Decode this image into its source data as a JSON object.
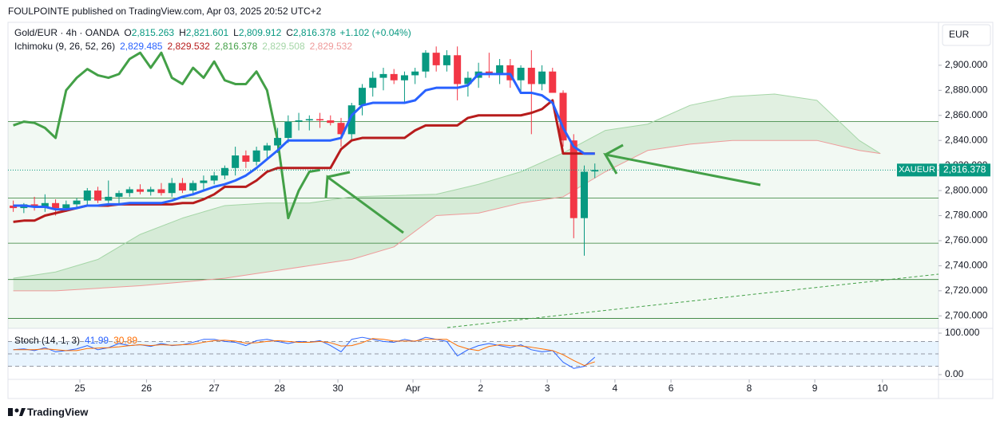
{
  "chart_data": {
    "type": "candlestick",
    "publisher": "FOULPOINTE published on TradingView.com, Apr 03, 2025 20:52 UTC+2",
    "title": "Gold/EUR · 4h · OANDA",
    "ohlc_readout": [
      {
        "key": "O",
        "label": "2,815.263"
      },
      {
        "key": "H",
        "label": "2,821.601"
      },
      {
        "key": "L",
        "label": "2,809.912"
      },
      {
        "key": "C",
        "label": "2,816.378"
      }
    ],
    "change": "+1.102 (+0.04%)",
    "currency": "EUR",
    "symbol_tag": "XAUEUR",
    "last_price_label": "2,816.378",
    "footer": "TradingView",
    "up_color": "#089981",
    "down_color": "#f23645",
    "x": [
      0,
      1,
      2,
      3,
      4,
      5,
      6,
      7,
      8,
      9,
      10,
      11,
      12,
      13,
      14,
      15,
      16,
      17,
      18,
      19,
      20,
      21,
      22,
      23,
      24,
      25,
      26,
      27,
      28,
      29,
      30,
      31,
      32,
      33,
      34,
      35,
      36,
      37,
      38,
      39,
      40,
      41,
      42,
      43,
      44,
      45,
      46,
      47,
      48,
      49,
      50,
      51,
      52,
      53,
      54,
      55
    ],
    "open": [
      2788,
      2786,
      2789,
      2787,
      2790,
      2786,
      2789,
      2792,
      2800,
      2792,
      2795,
      2798,
      2801,
      2799,
      2801,
      2798,
      2806,
      2800,
      2806,
      2808,
      2812,
      2818,
      2828,
      2823,
      2832,
      2836,
      2842,
      2855,
      2856,
      2857,
      2856,
      2854,
      2845,
      2868,
      2882,
      2890,
      2893,
      2888,
      2892,
      2895,
      2910,
      2900,
      2908,
      2885,
      2890,
      2895,
      2893,
      2900,
      2888,
      2898,
      2885,
      2895,
      2878,
      2840,
      2778,
      2815.263
    ],
    "high": [
      2792,
      2790,
      2795,
      2797,
      2793,
      2792,
      2794,
      2802,
      2803,
      2808,
      2800,
      2803,
      2805,
      2803,
      2806,
      2810,
      2810,
      2808,
      2812,
      2815,
      2820,
      2835,
      2832,
      2835,
      2838,
      2850,
      2860,
      2862,
      2860,
      2862,
      2860,
      2858,
      2870,
      2885,
      2895,
      2898,
      2897,
      2895,
      2898,
      2912,
      2915,
      2912,
      2915,
      2895,
      2902,
      2910,
      2905,
      2905,
      2900,
      2912,
      2900,
      2898,
      2880,
      2845,
      2820,
      2821.601
    ],
    "low": [
      2783,
      2782,
      2784,
      2783,
      2780,
      2783,
      2786,
      2788,
      2790,
      2790,
      2789,
      2795,
      2797,
      2796,
      2796,
      2795,
      2798,
      2796,
      2800,
      2805,
      2809,
      2812,
      2818,
      2820,
      2825,
      2830,
      2838,
      2848,
      2848,
      2850,
      2852,
      2835,
      2840,
      2860,
      2875,
      2880,
      2885,
      2870,
      2885,
      2890,
      2895,
      2895,
      2872,
      2875,
      2882,
      2890,
      2885,
      2882,
      2878,
      2845,
      2880,
      2880,
      2835,
      2762,
      2748,
      2809.912
    ],
    "close": [
      2786,
      2789,
      2787,
      2790,
      2786,
      2789,
      2792,
      2800,
      2792,
      2795,
      2798,
      2801,
      2799,
      2801,
      2798,
      2806,
      2800,
      2806,
      2808,
      2812,
      2818,
      2828,
      2823,
      2832,
      2836,
      2842,
      2855,
      2856,
      2857,
      2856,
      2854,
      2845,
      2868,
      2882,
      2890,
      2893,
      2888,
      2892,
      2895,
      2910,
      2900,
      2908,
      2885,
      2890,
      2895,
      2893,
      2900,
      2888,
      2898,
      2885,
      2895,
      2878,
      2840,
      2778,
      2815,
      2816.378
    ],
    "xlim": [
      -0.5,
      87.5
    ],
    "xticks": [
      {
        "value": 6.3,
        "label": "25"
      },
      {
        "value": 12.6,
        "label": "26"
      },
      {
        "value": 19,
        "label": "27"
      },
      {
        "value": 25.2,
        "label": "28"
      },
      {
        "value": 30.7,
        "label": "30"
      },
      {
        "value": 37.8,
        "label": "Apr"
      },
      {
        "value": 44.2,
        "label": "2"
      },
      {
        "value": 50.5,
        "label": "3"
      },
      {
        "value": 56.9,
        "label": "4"
      },
      {
        "value": 62.2,
        "label": "6"
      },
      {
        "value": 69.6,
        "label": "8"
      },
      {
        "value": 75.8,
        "label": "9"
      },
      {
        "value": 82.2,
        "label": "10"
      }
    ],
    "ylim": [
      2690,
      2933
    ],
    "yticks": [
      {
        "value": 2700,
        "label": "2,700.000"
      },
      {
        "value": 2720,
        "label": "2,720.000"
      },
      {
        "value": 2740,
        "label": "2,740.000"
      },
      {
        "value": 2760,
        "label": "2,760.000"
      },
      {
        "value": 2780,
        "label": "2,780.000"
      },
      {
        "value": 2800,
        "label": "2,800.000"
      },
      {
        "value": 2820,
        "label": "2,820.000"
      },
      {
        "value": 2840,
        "label": "2,840.000"
      },
      {
        "value": 2860,
        "label": "2,860.000"
      },
      {
        "value": 2880,
        "label": "2,880.000"
      },
      {
        "value": 2900,
        "label": "2,900.000"
      }
    ],
    "levels": [
      2855,
      2794,
      2758,
      2729,
      2698
    ],
    "level_color": "#2e7d32",
    "ichimoku": {
      "name": "Ichimoku (9, 26, 52, 26)",
      "cloud_color": "rgba(67,160,71,0.16)",
      "lines": [
        {
          "color": "#2962ff",
          "width": 3,
          "readout": "2,829.485",
          "values": [
            2788,
            2788,
            2787,
            2787,
            2785,
            2785,
            2786,
            2788,
            2788,
            2789,
            2789,
            2790,
            2790,
            2790,
            2790,
            2792,
            2795,
            2797,
            2800,
            2803,
            2805,
            2808,
            2812,
            2818,
            2825,
            2832,
            2840,
            2840,
            2840,
            2840,
            2840,
            2842,
            2860,
            2868,
            2870,
            2870,
            2870,
            2870,
            2872,
            2880,
            2882,
            2882,
            2882,
            2884,
            2893,
            2893,
            2893,
            2893,
            2878,
            2878,
            2876,
            2870,
            2850,
            2835,
            2829.485,
            2829.485
          ]
        },
        {
          "color": "#b71c1c",
          "width": 3,
          "readout": "2,829.532",
          "values": [
            2775,
            2776,
            2776,
            2780,
            2782,
            2784,
            2786,
            2788,
            2788,
            2788,
            2789,
            2789,
            2789,
            2789,
            2789,
            2789,
            2790,
            2790,
            2793,
            2797,
            2803,
            2803,
            2803,
            2808,
            2815,
            2818,
            2818,
            2818,
            2818,
            2818,
            2818,
            2833,
            2840,
            2842,
            2842,
            2842,
            2842,
            2842,
            2848,
            2852,
            2852,
            2852,
            2852,
            2858,
            2860,
            2860,
            2860,
            2860,
            2860,
            2862,
            2865,
            2872,
            2829.532,
            2829.532,
            2829.532,
            2829.532
          ]
        },
        {
          "color": "#43a047",
          "width": 3,
          "readout": "2,816.378",
          "x": [
            0,
            1,
            2,
            3,
            4,
            5,
            6,
            7,
            8,
            9,
            10,
            11,
            12,
            13,
            14,
            15,
            16,
            17,
            18,
            19,
            20,
            21,
            22,
            23,
            24,
            25,
            26,
            27,
            28,
            29
          ],
          "values": [
            2852,
            2855,
            2854,
            2850,
            2842,
            2880,
            2890,
            2897,
            2892,
            2890,
            2893,
            2905,
            2910,
            2898,
            2910,
            2890,
            2885,
            2898,
            2890,
            2903,
            2888,
            2885,
            2885,
            2895,
            2880,
            2840,
            2778,
            2800,
            2815,
            2816.378
          ]
        },
        {
          "color": "#a5d6a7",
          "width": 1,
          "readout": "2,829.508",
          "x": [
            0,
            4,
            8,
            12,
            16,
            20,
            24,
            28,
            32,
            36,
            40,
            44,
            48,
            52,
            56,
            60,
            64,
            68,
            72,
            76,
            80,
            82
          ],
          "values": [
            2730,
            2735,
            2745,
            2765,
            2778,
            2788,
            2790,
            2790,
            2795,
            2796,
            2797,
            2805,
            2815,
            2830,
            2848,
            2853,
            2868,
            2875,
            2877,
            2872,
            2840,
            2829.508
          ]
        },
        {
          "color": "#ef9a9a",
          "width": 1,
          "readout": "2,829.532",
          "x": [
            0,
            4,
            8,
            12,
            16,
            20,
            24,
            28,
            32,
            36,
            40,
            44,
            48,
            52,
            56,
            60,
            64,
            68,
            72,
            76,
            80,
            82
          ],
          "values": [
            2720,
            2720,
            2722,
            2724,
            2727,
            2730,
            2735,
            2740,
            2745,
            2755,
            2780,
            2782,
            2790,
            2795,
            2815,
            2832,
            2837,
            2840,
            2840,
            2840,
            2832,
            2829.532
          ]
        }
      ]
    },
    "stoch": {
      "name": "Stoch (14, 1, 3)",
      "ylim": [
        -11.5,
        109.6
      ],
      "yticks": [
        {
          "value": 100,
          "label": "100.000"
        },
        {
          "value": 0,
          "label": "0.00"
        }
      ],
      "levels": [
        80,
        50,
        20
      ],
      "band_color": "rgba(33,150,243,0.1)",
      "lines": [
        {
          "color": "#2962ff",
          "values": [
            60,
            62,
            58,
            65,
            55,
            58,
            62,
            70,
            60,
            65,
            75,
            70,
            72,
            68,
            75,
            70,
            72,
            78,
            85,
            85,
            80,
            78,
            70,
            82,
            85,
            80,
            75,
            80,
            78,
            82,
            70,
            55,
            85,
            90,
            85,
            80,
            78,
            85,
            80,
            90,
            85,
            80,
            45,
            60,
            70,
            75,
            70,
            65,
            72,
            60,
            55,
            58,
            30,
            15,
            20,
            41.99
          ]
        },
        {
          "color": "#ff6d00",
          "values": [
            60,
            60,
            60,
            62,
            60,
            58,
            58,
            63,
            64,
            65,
            67,
            70,
            72,
            70,
            72,
            71,
            72,
            73,
            78,
            82,
            83,
            81,
            76,
            77,
            80,
            82,
            80,
            78,
            78,
            80,
            77,
            69,
            70,
            77,
            87,
            85,
            81,
            81,
            81,
            85,
            85,
            85,
            70,
            62,
            58,
            68,
            72,
            70,
            69,
            66,
            62,
            58,
            48,
            34,
            22,
            30.89
          ]
        }
      ]
    }
  }
}
